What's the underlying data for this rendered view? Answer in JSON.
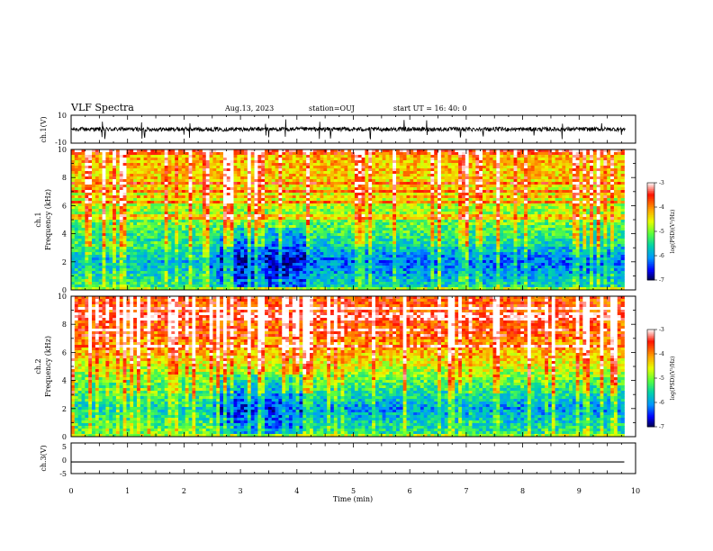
{
  "header": {
    "title": "VLF Spectra",
    "date": "Aug.13, 2023",
    "station": "station=OUJ",
    "start": "start  UT =   16: 40: 0"
  },
  "chart_data": [
    {
      "type": "line",
      "panel": "ch1-waveform",
      "ylabel": "ch.1(V)",
      "ylim": [
        -10,
        10
      ],
      "yticks": [
        "10",
        "-10"
      ],
      "xlim": [
        0,
        10
      ],
      "baseline_v": 0,
      "noise_amplitude_v": 1.5,
      "spike_amplitude_v": 6,
      "spike_times_min": [
        0.55,
        0.6,
        1.25,
        1.3,
        2.0,
        2.1,
        3.45,
        3.5,
        3.8,
        4.4,
        4.6,
        5.3,
        5.9,
        6.3,
        6.9,
        7.3,
        8.2,
        8.7,
        9.4,
        9.75
      ]
    },
    {
      "type": "heatmap",
      "panel": "ch1-spectrogram",
      "ylabel": "ch.1\nFrequency (kHz)",
      "ylim": [
        0,
        10
      ],
      "yticks": [
        "0",
        "2",
        "4",
        "6",
        "8",
        "10"
      ],
      "xlim": [
        0,
        9.8
      ],
      "colorbar": {
        "label": "log(PSD)(V²/Hz)",
        "range": [
          -7,
          -3
        ],
        "ticks": [
          "-3",
          "-4",
          "-5",
          "-6",
          "-7"
        ],
        "colors": [
          "#ffffff",
          "#ff0000",
          "#ffa500",
          "#ffff00",
          "#66ff33",
          "#00ccaa",
          "#00aaff",
          "#0000ff",
          "#000060"
        ]
      },
      "profile_log_psd": [
        {
          "freq_khz": 0,
          "value": -5.6
        },
        {
          "freq_khz": 2,
          "value": -6.2
        },
        {
          "freq_khz": 4,
          "value": -5.3
        },
        {
          "freq_khz": 6,
          "value": -4.8
        },
        {
          "freq_khz": 8,
          "value": -4.3
        },
        {
          "freq_khz": 10,
          "value": -4.2
        }
      ]
    },
    {
      "type": "heatmap",
      "panel": "ch2-spectrogram",
      "ylabel": "ch.2\nFrequency (kHz)",
      "ylim": [
        0,
        10
      ],
      "yticks": [
        "0",
        "2",
        "4",
        "6",
        "8",
        "10"
      ],
      "xlim": [
        0,
        9.8
      ],
      "colorbar": {
        "label": "log(PSD)(V²/Hz)",
        "range": [
          -7,
          -3
        ],
        "ticks": [
          "-3",
          "-4",
          "-5",
          "-6",
          "-7"
        ],
        "colors": [
          "#ffffff",
          "#ff0000",
          "#ffa500",
          "#ffff00",
          "#66ff33",
          "#00ccaa",
          "#00aaff",
          "#0000ff",
          "#000060"
        ]
      },
      "profile_log_psd": [
        {
          "freq_khz": 0,
          "value": -5.3
        },
        {
          "freq_khz": 2,
          "value": -6.0
        },
        {
          "freq_khz": 4,
          "value": -5.1
        },
        {
          "freq_khz": 6,
          "value": -4.2
        },
        {
          "freq_khz": 8,
          "value": -3.8
        },
        {
          "freq_khz": 10,
          "value": -3.7
        }
      ]
    },
    {
      "type": "line",
      "panel": "ch3-trace",
      "ylabel": "ch.3(V)",
      "ylim": [
        -5,
        5
      ],
      "yticks": [
        "5",
        "0",
        "-5"
      ],
      "xlim": [
        0,
        10
      ],
      "x": [
        0,
        9.8
      ],
      "y": [
        -1.2,
        -1.2
      ]
    }
  ],
  "xaxis": {
    "label": "Time (min)",
    "ticks": [
      "0",
      "1",
      "2",
      "3",
      "4",
      "5",
      "6",
      "7",
      "8",
      "9",
      "10"
    ]
  }
}
